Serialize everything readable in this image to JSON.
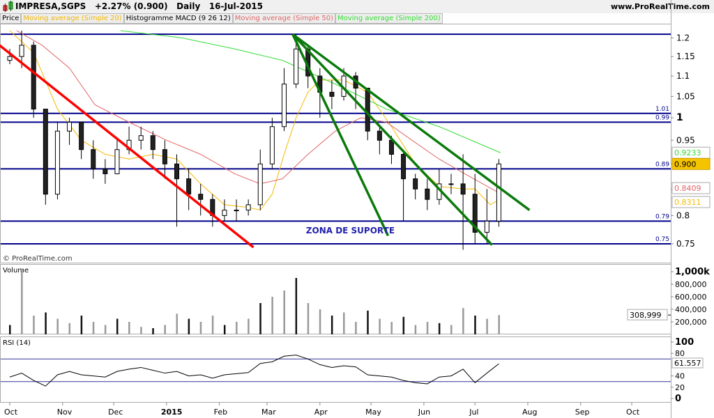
{
  "header": {
    "symbol": "IMPRESA,SGPS",
    "change": "+2.27% (0.900)",
    "period": "Daily",
    "date": "16-Jul-2015",
    "site": "www.ProRealTime.com"
  },
  "legend": [
    {
      "label": "Price",
      "color": "#000000"
    },
    {
      "label": "Moving average (Simple 20)",
      "color": "#f5b800"
    },
    {
      "label": "Histogramme MACD (9 26 12)",
      "color": "#000000"
    },
    {
      "label": "Moving average (Simple 50)",
      "color": "#e06666"
    },
    {
      "label": "Moving average (Simple 200)",
      "color": "#33dd33"
    }
  ],
  "watermark": "© ProRealTime.com",
  "chart_data": [
    {
      "type": "candlestick",
      "pane": "price",
      "scale": "log",
      "ylim": [
        0.73,
        1.24
      ],
      "yticks": [
        0.75,
        0.8,
        0.85,
        0.9,
        0.95,
        1,
        1.05,
        1.1,
        1.15,
        1.2
      ],
      "ytick_labels": [
        "0.75",
        "0.8",
        "",
        "",
        "0.95",
        "1",
        "1.05",
        "1.1",
        "1.15",
        "1.2"
      ],
      "xticks": [
        "2014-10-01",
        "2014-11-01",
        "2014-12-01",
        "2015-01-01",
        "2015-02-01",
        "2015-03-01",
        "2015-04-01",
        "2015-05-01",
        "2015-06-01",
        "2015-07-01",
        "2015-08-01",
        "2015-09-01",
        "2015-10-01"
      ],
      "xtick_labels": [
        "Oct",
        "Nov",
        "Dec",
        "2015",
        "Feb",
        "Mar",
        "Apr",
        "May",
        "Jun",
        "Jul",
        "Aug",
        "Sep",
        "Oct"
      ],
      "xlim": [
        "2014-09-25",
        "2015-10-20"
      ],
      "candles": [
        [
          "2014-10-01",
          1.14,
          1.17,
          1.13,
          1.15
        ],
        [
          "2014-10-08",
          1.15,
          1.22,
          1.12,
          1.18
        ],
        [
          "2014-10-15",
          1.18,
          1.19,
          1.0,
          1.02
        ],
        [
          "2014-10-22",
          1.02,
          1.02,
          0.82,
          0.84
        ],
        [
          "2014-10-29",
          0.84,
          0.99,
          0.83,
          0.97
        ],
        [
          "2014-11-05",
          0.97,
          1.0,
          0.94,
          0.99
        ],
        [
          "2014-11-12",
          0.99,
          0.99,
          0.91,
          0.93
        ],
        [
          "2014-11-19",
          0.93,
          0.95,
          0.87,
          0.89
        ],
        [
          "2014-11-26",
          0.89,
          0.91,
          0.86,
          0.88
        ],
        [
          "2014-12-03",
          0.88,
          0.95,
          0.88,
          0.93
        ],
        [
          "2014-12-10",
          0.93,
          0.98,
          0.92,
          0.95
        ],
        [
          "2014-12-17",
          0.95,
          0.98,
          0.93,
          0.96
        ],
        [
          "2014-12-24",
          0.96,
          0.97,
          0.91,
          0.93
        ],
        [
          "2014-12-31",
          0.93,
          0.95,
          0.87,
          0.9
        ],
        [
          "2015-01-07",
          0.9,
          0.92,
          0.78,
          0.87
        ],
        [
          "2015-01-14",
          0.87,
          0.89,
          0.81,
          0.84
        ],
        [
          "2015-01-21",
          0.84,
          0.86,
          0.8,
          0.83
        ],
        [
          "2015-01-28",
          0.83,
          0.84,
          0.78,
          0.8
        ],
        [
          "2015-02-04",
          0.8,
          0.83,
          0.79,
          0.81
        ],
        [
          "2015-02-11",
          0.81,
          0.83,
          0.79,
          0.81
        ],
        [
          "2015-02-18",
          0.81,
          0.83,
          0.8,
          0.82
        ],
        [
          "2015-02-25",
          0.82,
          0.93,
          0.81,
          0.9
        ],
        [
          "2015-03-04",
          0.9,
          1.0,
          0.89,
          0.98
        ],
        [
          "2015-03-11",
          0.98,
          1.12,
          0.97,
          1.08
        ],
        [
          "2015-03-18",
          1.08,
          1.21,
          1.07,
          1.17
        ],
        [
          "2015-03-25",
          1.17,
          1.18,
          1.07,
          1.1
        ],
        [
          "2015-04-01",
          1.1,
          1.12,
          1.0,
          1.06
        ],
        [
          "2015-04-08",
          1.06,
          1.09,
          1.02,
          1.05
        ],
        [
          "2015-04-15",
          1.05,
          1.12,
          1.04,
          1.1
        ],
        [
          "2015-04-22",
          1.1,
          1.11,
          1.02,
          1.07
        ],
        [
          "2015-04-29",
          1.07,
          1.07,
          0.95,
          0.97
        ],
        [
          "2015-05-06",
          0.97,
          0.98,
          0.92,
          0.95
        ],
        [
          "2015-05-13",
          0.95,
          0.96,
          0.9,
          0.92
        ],
        [
          "2015-05-20",
          0.92,
          0.93,
          0.79,
          0.87
        ],
        [
          "2015-05-27",
          0.87,
          0.88,
          0.83,
          0.85
        ],
        [
          "2015-06-03",
          0.85,
          0.87,
          0.81,
          0.83
        ],
        [
          "2015-06-10",
          0.83,
          0.89,
          0.82,
          0.86
        ],
        [
          "2015-06-17",
          0.86,
          0.88,
          0.84,
          0.86
        ],
        [
          "2015-06-24",
          0.86,
          0.92,
          0.74,
          0.84
        ],
        [
          "2015-07-01",
          0.84,
          0.88,
          0.75,
          0.77
        ],
        [
          "2015-07-08",
          0.77,
          0.85,
          0.75,
          0.79
        ],
        [
          "2015-07-15",
          0.79,
          0.91,
          0.78,
          0.9
        ]
      ],
      "series": [
        {
          "name": "Moving average (Simple 20)",
          "color": "#f5b800",
          "points": [
            [
              "2014-10-01",
              1.22
            ],
            [
              "2014-10-15",
              1.16
            ],
            [
              "2014-10-29",
              1.02
            ],
            [
              "2014-11-12",
              0.95
            ],
            [
              "2014-11-26",
              0.92
            ],
            [
              "2014-12-10",
              0.91
            ],
            [
              "2014-12-24",
              0.92
            ],
            [
              "2015-01-07",
              0.91
            ],
            [
              "2015-01-21",
              0.86
            ],
            [
              "2015-02-04",
              0.82
            ],
            [
              "2015-02-18",
              0.815
            ],
            [
              "2015-02-25",
              0.81
            ],
            [
              "2015-03-04",
              0.84
            ],
            [
              "2015-03-11",
              0.92
            ],
            [
              "2015-03-18",
              1.0
            ],
            [
              "2015-03-25",
              1.06
            ],
            [
              "2015-04-01",
              1.09
            ],
            [
              "2015-04-15",
              1.09
            ],
            [
              "2015-04-29",
              1.06
            ],
            [
              "2015-05-13",
              0.98
            ],
            [
              "2015-05-27",
              0.9
            ],
            [
              "2015-06-10",
              0.855
            ],
            [
              "2015-06-24",
              0.85
            ],
            [
              "2015-07-01",
              0.85
            ],
            [
              "2015-07-10",
              0.82
            ],
            [
              "2015-07-16",
              0.8311
            ]
          ],
          "last": "0.8311"
        },
        {
          "name": "Moving average (Simple 50)",
          "color": "#e06666",
          "points": [
            [
              "2014-10-05",
              1.22
            ],
            [
              "2014-10-20",
              1.18
            ],
            [
              "2014-11-05",
              1.12
            ],
            [
              "2014-11-20",
              1.03
            ],
            [
              "2014-12-10",
              0.99
            ],
            [
              "2015-01-01",
              0.95
            ],
            [
              "2015-01-21",
              0.92
            ],
            [
              "2015-02-10",
              0.88
            ],
            [
              "2015-02-25",
              0.86
            ],
            [
              "2015-03-10",
              0.87
            ],
            [
              "2015-03-25",
              0.92
            ],
            [
              "2015-04-10",
              0.97
            ],
            [
              "2015-04-25",
              1.0
            ],
            [
              "2015-05-10",
              0.99
            ],
            [
              "2015-05-25",
              0.95
            ],
            [
              "2015-06-10",
              0.91
            ],
            [
              "2015-06-25",
              0.88
            ],
            [
              "2015-07-16",
              0.8409
            ]
          ],
          "last": "0.8409"
        },
        {
          "name": "Moving average (Simple 200)",
          "color": "#33dd33",
          "points": [
            [
              "2014-12-05",
              1.22
            ],
            [
              "2015-01-10",
              1.2
            ],
            [
              "2015-02-10",
              1.17
            ],
            [
              "2015-03-10",
              1.14
            ],
            [
              "2015-04-10",
              1.08
            ],
            [
              "2015-05-10",
              1.02
            ],
            [
              "2015-06-10",
              0.98
            ],
            [
              "2015-07-16",
              0.9233
            ]
          ],
          "last": "0.9233"
        }
      ],
      "last_price": "0.900",
      "hlines": [
        {
          "value": 1.21,
          "label": ""
        },
        {
          "value": 1.01,
          "label": "1.01"
        },
        {
          "value": 0.99,
          "label": "0.99"
        },
        {
          "value": 0.89,
          "label": "0.89"
        },
        {
          "value": 0.79,
          "label": "0.79"
        },
        {
          "value": 0.75,
          "label": "0.75"
        }
      ],
      "trendlines": [
        {
          "color": "#ff0000",
          "from": [
            "2014-09-25",
            1.18
          ],
          "to": [
            "2015-02-21",
            0.744
          ]
        },
        {
          "color": "#0a7a0a",
          "from": [
            "2015-03-16",
            1.21
          ],
          "to": [
            "2015-05-11",
            0.764
          ]
        },
        {
          "color": "#0a7a0a",
          "from": [
            "2015-03-16",
            1.21
          ],
          "to": [
            "2015-07-11",
            0.748
          ]
        },
        {
          "color": "#0a7a0a",
          "from": [
            "2015-03-16",
            1.21
          ],
          "to": [
            "2015-08-02",
            0.81
          ]
        }
      ],
      "annotation": {
        "text": "ZONA DE SUPORTE",
        "date": "2015-04-01",
        "value": 0.768
      }
    },
    {
      "type": "bar",
      "pane": "volume",
      "title": "Volume",
      "ylim": [
        0,
        1100000
      ],
      "ytick_labels": [
        "1,000k",
        "800,000",
        "600,000",
        "400,000",
        "200,000"
      ],
      "yticks": [
        1000000,
        800000,
        600000,
        400000,
        200000
      ],
      "last": "308,999",
      "values": [
        [
          "2014-10-01",
          150000
        ],
        [
          "2014-10-08",
          1050000
        ],
        [
          "2014-10-15",
          300000
        ],
        [
          "2014-10-22",
          350000
        ],
        [
          "2014-10-29",
          250000
        ],
        [
          "2014-11-05",
          180000
        ],
        [
          "2014-11-12",
          300000
        ],
        [
          "2014-11-19",
          200000
        ],
        [
          "2014-11-26",
          150000
        ],
        [
          "2014-12-03",
          250000
        ],
        [
          "2014-12-10",
          200000
        ],
        [
          "2014-12-17",
          120000
        ],
        [
          "2014-12-24",
          100000
        ],
        [
          "2014-12-31",
          150000
        ],
        [
          "2015-01-07",
          330000
        ],
        [
          "2015-01-14",
          250000
        ],
        [
          "2015-01-21",
          200000
        ],
        [
          "2015-01-28",
          300000
        ],
        [
          "2015-02-04",
          150000
        ],
        [
          "2015-02-11",
          200000
        ],
        [
          "2015-02-18",
          250000
        ],
        [
          "2015-02-25",
          500000
        ],
        [
          "2015-03-04",
          600000
        ],
        [
          "2015-03-11",
          700000
        ],
        [
          "2015-03-18",
          900000
        ],
        [
          "2015-03-25",
          500000
        ],
        [
          "2015-04-01",
          400000
        ],
        [
          "2015-04-08",
          300000
        ],
        [
          "2015-04-15",
          350000
        ],
        [
          "2015-04-22",
          200000
        ],
        [
          "2015-04-29",
          380000
        ],
        [
          "2015-05-06",
          250000
        ],
        [
          "2015-05-13",
          200000
        ],
        [
          "2015-05-20",
          280000
        ],
        [
          "2015-05-27",
          150000
        ],
        [
          "2015-06-03",
          200000
        ],
        [
          "2015-06-10",
          180000
        ],
        [
          "2015-06-17",
          150000
        ],
        [
          "2015-06-24",
          420000
        ],
        [
          "2015-07-01",
          300000
        ],
        [
          "2015-07-08",
          250000
        ],
        [
          "2015-07-15",
          308999
        ]
      ]
    },
    {
      "type": "line",
      "pane": "rsi",
      "title": "RSI (14)",
      "ylim": [
        0,
        100
      ],
      "yticks": [
        100,
        80,
        40,
        20,
        0
      ],
      "ytick_labels": [
        "100",
        "80",
        "40",
        "20",
        "0"
      ],
      "levels": [
        70,
        30
      ],
      "last": "61.557",
      "values": [
        [
          "2014-10-01",
          38
        ],
        [
          "2014-10-08",
          45
        ],
        [
          "2014-10-15",
          32
        ],
        [
          "2014-10-22",
          22
        ],
        [
          "2014-10-29",
          42
        ],
        [
          "2014-11-05",
          48
        ],
        [
          "2014-11-12",
          42
        ],
        [
          "2014-11-19",
          40
        ],
        [
          "2014-11-26",
          38
        ],
        [
          "2014-12-03",
          48
        ],
        [
          "2014-12-10",
          52
        ],
        [
          "2014-12-17",
          55
        ],
        [
          "2014-12-24",
          50
        ],
        [
          "2014-12-31",
          45
        ],
        [
          "2015-01-07",
          48
        ],
        [
          "2015-01-14",
          40
        ],
        [
          "2015-01-21",
          42
        ],
        [
          "2015-01-28",
          36
        ],
        [
          "2015-02-04",
          42
        ],
        [
          "2015-02-11",
          44
        ],
        [
          "2015-02-18",
          46
        ],
        [
          "2015-02-25",
          62
        ],
        [
          "2015-03-04",
          65
        ],
        [
          "2015-03-11",
          75
        ],
        [
          "2015-03-18",
          77
        ],
        [
          "2015-03-25",
          70
        ],
        [
          "2015-04-01",
          60
        ],
        [
          "2015-04-08",
          55
        ],
        [
          "2015-04-15",
          58
        ],
        [
          "2015-04-22",
          56
        ],
        [
          "2015-04-29",
          42
        ],
        [
          "2015-05-06",
          40
        ],
        [
          "2015-05-13",
          38
        ],
        [
          "2015-05-20",
          32
        ],
        [
          "2015-05-27",
          28
        ],
        [
          "2015-06-03",
          26
        ],
        [
          "2015-06-10",
          38
        ],
        [
          "2015-06-17",
          40
        ],
        [
          "2015-06-24",
          52
        ],
        [
          "2015-07-01",
          28
        ],
        [
          "2015-07-08",
          45
        ],
        [
          "2015-07-15",
          61.557
        ]
      ]
    }
  ]
}
